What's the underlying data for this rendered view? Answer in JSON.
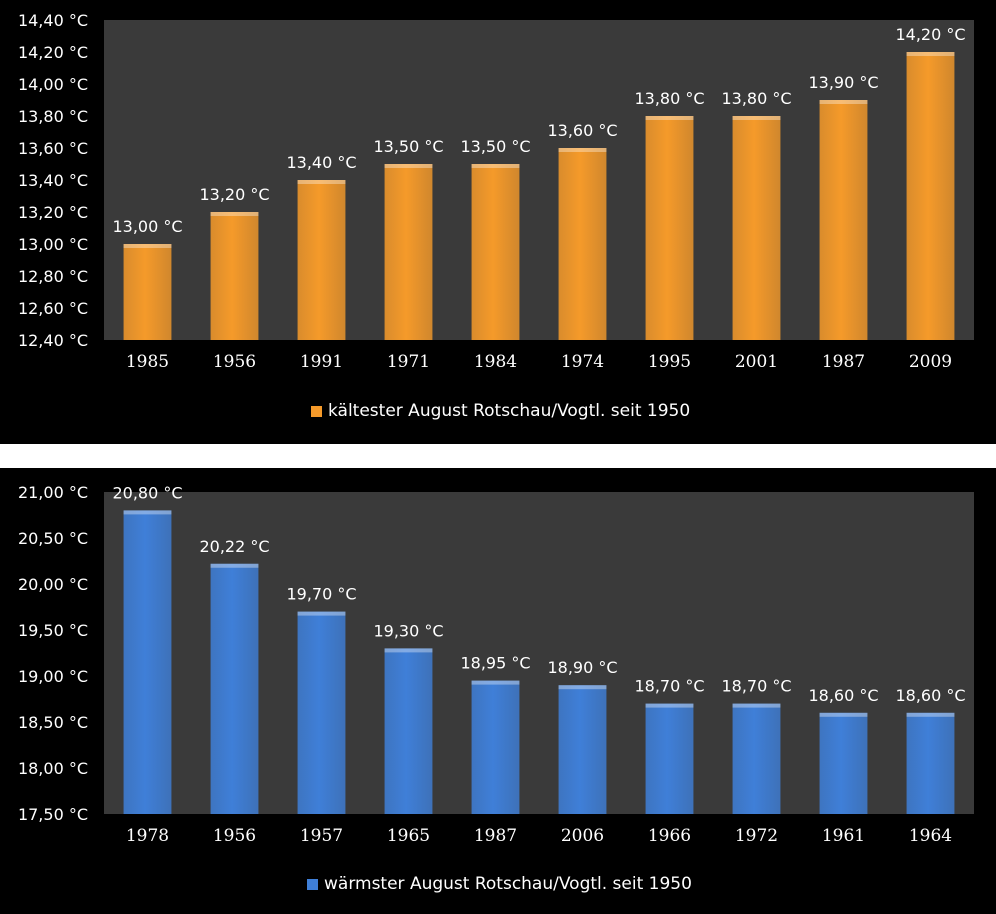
{
  "colors": {
    "plot_background": "#3a3a3a",
    "cold_bar": "#f59a2a",
    "warm_bar": "#3f7fd8"
  },
  "chart_data": [
    {
      "type": "bar",
      "categories": [
        "1985",
        "1956",
        "1991",
        "1971",
        "1984",
        "1974",
        "1995",
        "2001",
        "1987",
        "2009"
      ],
      "series": [
        {
          "name": "kältester August Rotschau/Vogtl. seit 1950",
          "values": [
            13.0,
            13.2,
            13.4,
            13.5,
            13.5,
            13.6,
            13.8,
            13.8,
            13.9,
            14.2
          ]
        }
      ],
      "data_labels": [
        "13,00 °C",
        "13,20 °C",
        "13,40 °C",
        "13,50 °C",
        "13,50 °C",
        "13,60 °C",
        "13,80 °C",
        "13,80 °C",
        "13,90 °C",
        "14,20 °C"
      ],
      "ylim": [
        12.4,
        14.4
      ],
      "yticks": [
        12.4,
        12.6,
        12.8,
        13.0,
        13.2,
        13.4,
        13.6,
        13.8,
        14.0,
        14.2,
        14.4
      ],
      "ytick_labels": [
        "12,40 °C",
        "12,60 °C",
        "12,80 °C",
        "13,00 °C",
        "13,20 °C",
        "13,40 °C",
        "13,60 °C",
        "13,80 °C",
        "14,00 °C",
        "14,20 °C",
        "14,40 °C"
      ],
      "legend": "bottom",
      "grid": false
    },
    {
      "type": "bar",
      "categories": [
        "1978",
        "1956",
        "1957",
        "1965",
        "1987",
        "2006",
        "1966",
        "1972",
        "1961",
        "1964"
      ],
      "series": [
        {
          "name": "wärmster August Rotschau/Vogtl. seit 1950",
          "values": [
            20.8,
            20.22,
            19.7,
            19.3,
            18.95,
            18.9,
            18.7,
            18.7,
            18.6,
            18.6
          ]
        }
      ],
      "data_labels": [
        "20,80 °C",
        "20,22 °C",
        "19,70 °C",
        "19,30 °C",
        "18,95 °C",
        "18,90 °C",
        "18,70 °C",
        "18,70 °C",
        "18,60 °C",
        "18,60 °C"
      ],
      "ylim": [
        17.5,
        21.0
      ],
      "yticks": [
        17.5,
        18.0,
        18.5,
        19.0,
        19.5,
        20.0,
        20.5,
        21.0
      ],
      "ytick_labels": [
        "17,50 °C",
        "18,00 °C",
        "18,50 °C",
        "19,00 °C",
        "19,50 °C",
        "20,00 °C",
        "20,50 °C",
        "21,00 °C"
      ],
      "legend": "bottom",
      "grid": false
    }
  ]
}
